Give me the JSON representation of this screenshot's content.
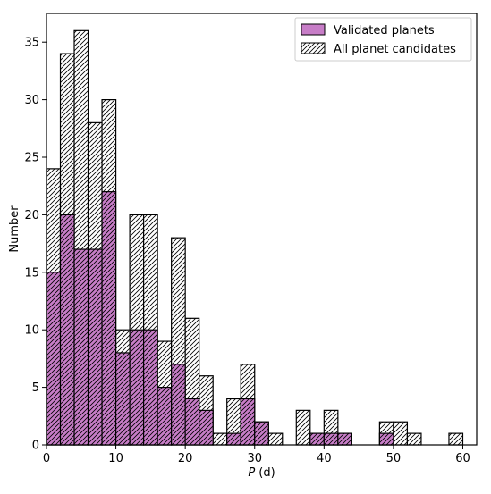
{
  "chart_data": {
    "type": "bar",
    "subtype": "overlaid-histogram",
    "title": "",
    "xlabel_italic": "P",
    "xlabel_unit": " (d)",
    "ylabel": "Number",
    "xlim": [
      0,
      62
    ],
    "ylim": [
      0,
      37.5
    ],
    "bin_width": 2,
    "xticks": [
      0,
      10,
      20,
      30,
      40,
      50,
      60
    ],
    "yticks": [
      0,
      5,
      10,
      15,
      20,
      25,
      30,
      35
    ],
    "grid": false,
    "legend_position": "top-right",
    "series": [
      {
        "name": "All planet candidates",
        "style": "hatched",
        "color": "#ffffff",
        "bins": [
          [
            0,
            24
          ],
          [
            2,
            34
          ],
          [
            4,
            36
          ],
          [
            6,
            28
          ],
          [
            8,
            30
          ],
          [
            10,
            10
          ],
          [
            12,
            20
          ],
          [
            14,
            20
          ],
          [
            16,
            9
          ],
          [
            18,
            18
          ],
          [
            20,
            11
          ],
          [
            22,
            6
          ],
          [
            24,
            1
          ],
          [
            26,
            4
          ],
          [
            28,
            7
          ],
          [
            30,
            2
          ],
          [
            32,
            1
          ],
          [
            36,
            3
          ],
          [
            38,
            1
          ],
          [
            40,
            3
          ],
          [
            42,
            1
          ],
          [
            48,
            2
          ],
          [
            50,
            2
          ],
          [
            52,
            1
          ],
          [
            58,
            1
          ]
        ]
      },
      {
        "name": "Validated planets",
        "style": "filled",
        "color": "#c77dc7",
        "bins": [
          [
            0,
            15
          ],
          [
            2,
            20
          ],
          [
            4,
            17
          ],
          [
            6,
            17
          ],
          [
            8,
            22
          ],
          [
            10,
            8
          ],
          [
            12,
            10
          ],
          [
            14,
            10
          ],
          [
            16,
            5
          ],
          [
            18,
            7
          ],
          [
            20,
            4
          ],
          [
            22,
            3
          ],
          [
            26,
            1
          ],
          [
            28,
            4
          ],
          [
            30,
            2
          ],
          [
            38,
            1
          ],
          [
            40,
            1
          ],
          [
            42,
            1
          ],
          [
            48,
            1
          ]
        ]
      }
    ]
  }
}
